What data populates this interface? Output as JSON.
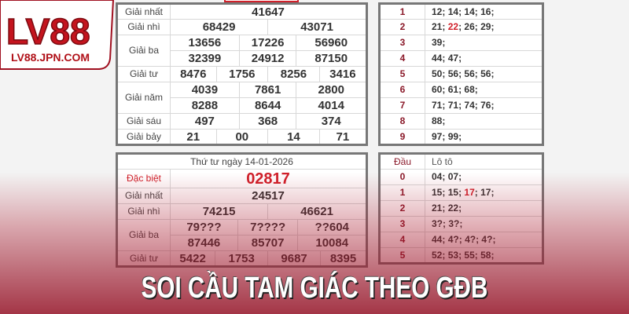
{
  "brand": {
    "logo": "LV88",
    "domain": "LV88.JPN.COM"
  },
  "top_results": {
    "rows": [
      {
        "label": "Giải nhất",
        "values": [
          [
            "41647"
          ]
        ]
      },
      {
        "label": "Giải nhì",
        "values": [
          [
            "68429",
            "43071"
          ]
        ]
      },
      {
        "label": "Giải ba",
        "values": [
          [
            "13656",
            "17226",
            "56960"
          ],
          [
            "32399",
            "24912",
            "87150"
          ]
        ]
      },
      {
        "label": "Giải tư",
        "values": [
          [
            "8476",
            "1756",
            "8256",
            "3416"
          ]
        ]
      },
      {
        "label": "Giải năm",
        "values": [
          [
            "4039",
            "7861",
            "2800"
          ],
          [
            "8288",
            "8644",
            "4014"
          ]
        ]
      },
      {
        "label": "Giải sáu",
        "values": [
          [
            "497",
            "368",
            "374"
          ]
        ]
      },
      {
        "label": "Giải bảy",
        "values": [
          [
            "21",
            "00",
            "14",
            "71"
          ]
        ]
      }
    ]
  },
  "top_loto": {
    "rows": [
      {
        "head": "1",
        "nums": [
          "12",
          "14",
          "14",
          "16"
        ]
      },
      {
        "head": "2",
        "nums": [
          "21",
          "22",
          "26",
          "29"
        ],
        "highlight": "22"
      },
      {
        "head": "3",
        "nums": [
          "39"
        ]
      },
      {
        "head": "4",
        "nums": [
          "44",
          "47"
        ]
      },
      {
        "head": "5",
        "nums": [
          "50",
          "56",
          "56",
          "56"
        ]
      },
      {
        "head": "6",
        "nums": [
          "60",
          "61",
          "68"
        ]
      },
      {
        "head": "7",
        "nums": [
          "71",
          "71",
          "74",
          "76"
        ]
      },
      {
        "head": "8",
        "nums": [
          "88"
        ]
      },
      {
        "head": "9",
        "nums": [
          "97",
          "99"
        ]
      }
    ]
  },
  "bottom_results": {
    "date": "Thứ tư ngày 14-01-2026",
    "rows": [
      {
        "label": "Đặc biệt",
        "values": [
          [
            "02817"
          ]
        ],
        "special": true
      },
      {
        "label": "Giải nhất",
        "values": [
          [
            "24517"
          ]
        ]
      },
      {
        "label": "Giải nhì",
        "values": [
          [
            "74215",
            "46621"
          ]
        ]
      },
      {
        "label": "Giải ba",
        "values": [
          [
            "79???",
            "7????",
            "??604"
          ],
          [
            "87446",
            "85707",
            "10084"
          ]
        ]
      },
      {
        "label": "Giải tư",
        "values": [
          [
            "5422",
            "1753",
            "9687",
            "8395"
          ]
        ]
      }
    ]
  },
  "bottom_loto": {
    "header": [
      "Đầu",
      "Lô tô"
    ],
    "rows": [
      {
        "head": "0",
        "nums": [
          "04",
          "07"
        ]
      },
      {
        "head": "1",
        "nums": [
          "15",
          "15",
          "17",
          "17"
        ],
        "highlight": "17"
      },
      {
        "head": "2",
        "nums": [
          "21",
          "22"
        ]
      },
      {
        "head": "3",
        "nums": [
          "3?",
          "3?"
        ]
      },
      {
        "head": "4",
        "nums": [
          "44",
          "4?",
          "4?",
          "4?"
        ]
      },
      {
        "head": "5",
        "nums": [
          "52",
          "53",
          "55",
          "58"
        ]
      }
    ]
  },
  "headline": "SOI CẦU TAM GIÁC THEO GĐB",
  "colors": {
    "accent": "#d0202a",
    "overlay": "#9b1b2a"
  }
}
